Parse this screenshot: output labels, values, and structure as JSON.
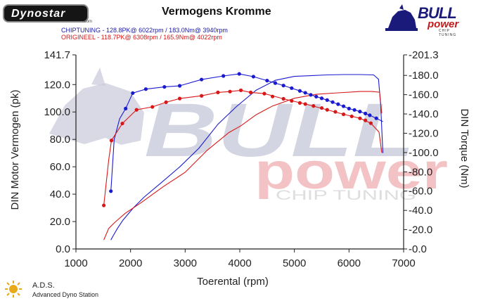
{
  "header": {
    "logo_text": "Dynostar",
    "logo_sub": ".com",
    "brand_main": "BULL",
    "brand_sub": "power",
    "brand_tagline": "CHIP TUNING",
    "watermark_main": "BULL",
    "watermark_sub": "power",
    "watermark_tag": "CHIP TUNING"
  },
  "footer": {
    "ads_abbrev": "A.D.S.",
    "ads_full": "Advanced Dyno Station"
  },
  "colors": {
    "chip": "#1a1ad0",
    "orig": "#d81818"
  },
  "chart_data": {
    "type": "line",
    "title": "Vermogens Kromme",
    "xlabel": "Toerental (rpm)",
    "ylabel": "DIN Motor Vermogen (pk)",
    "y2label": "DIN Torque (Nm)",
    "xlim": [
      1000,
      7000
    ],
    "ylim": [
      0,
      141.7
    ],
    "y2lim": [
      0,
      201.3
    ],
    "x_ticks": [
      "1000",
      "2000",
      "3000",
      "4000",
      "5000",
      "6000",
      "7000"
    ],
    "y_ticks": [
      "0.0",
      "20.0",
      "40.0",
      "60.0",
      "80.0",
      "100.0",
      "120.0",
      "141.7"
    ],
    "y2_ticks": [
      "0.0",
      "20.0",
      "40.0",
      "60.0",
      "80.0",
      "100.0",
      "120.0",
      "140.0",
      "160.0",
      "180.0",
      "201.3"
    ],
    "legend": [
      "CHIPTUNING  - 128.8PK@ 6022rpm / 183.0Nm@ 3940rpm",
      "ORIGINEEL  - 118.7PK@ 6308rpm / 165.9Nm@ 4022rpm"
    ],
    "series": [
      {
        "name": "CHIPTUNING",
        "kind": "torque",
        "axis": "y2",
        "x": [
          1640,
          1680,
          1760,
          1860,
          2050,
          2250,
          2550,
          2900,
          3250,
          3600,
          3940,
          4300,
          4650,
          5000,
          5300,
          5600,
          5900,
          6200,
          6450,
          6540,
          6580,
          6620
        ],
        "y": [
          9.3,
          13.5,
          21.3,
          29.8,
          42.6,
          53.9,
          68.1,
          85.1,
          104.4,
          129.3,
          147.7,
          164.7,
          174.9,
          179.0,
          179.7,
          180.5,
          180.9,
          180.9,
          180.5,
          176.0,
          149.1,
          99.4
        ]
      },
      {
        "name": "CHIPTUNING",
        "kind": "power",
        "axis": "y",
        "x": [
          1640,
          1700,
          1800,
          1910,
          2040,
          2280,
          2620,
          2900,
          3300,
          3700,
          3990,
          4250,
          4500,
          4800,
          5100,
          5300,
          5600,
          6000,
          6200,
          6380,
          6500,
          6620
        ],
        "y": [
          42.2,
          80.0,
          95.0,
          102.5,
          113.8,
          116.7,
          118.3,
          119.1,
          123.7,
          126.3,
          127.8,
          125.8,
          122.9,
          119.3,
          115.4,
          112.5,
          108.7,
          102.5,
          100.3,
          97.6,
          95.4,
          93.0
        ]
      },
      {
        "name": "ORIGINEEL",
        "kind": "torque",
        "axis": "y2",
        "x": [
          1510,
          1600,
          1700,
          1900,
          2200,
          2600,
          3000,
          3400,
          3800,
          4022,
          4300,
          4600,
          5000,
          5400,
          5800,
          6200,
          6420,
          6560,
          6600
        ],
        "y": [
          9.3,
          21.3,
          27.0,
          36.9,
          48.3,
          64.7,
          79.5,
          102.2,
          120.7,
          127.8,
          139.2,
          148.3,
          156.3,
          160.4,
          161.9,
          163.3,
          163.3,
          162.6,
          140.6
        ]
      },
      {
        "name": "ORIGINEEL",
        "kind": "power",
        "axis": "y",
        "x": [
          1510,
          1600,
          1650,
          1850,
          2110,
          2400,
          2650,
          2900,
          3300,
          3600,
          3820,
          4020,
          4200,
          4450,
          4800,
          5200,
          5600,
          5900,
          6200,
          6400,
          6550,
          6600
        ],
        "y": [
          31.8,
          65.0,
          79.2,
          91.6,
          101.6,
          103.7,
          107.1,
          109.8,
          111.8,
          114.3,
          114.9,
          115.8,
          114.3,
          113.4,
          109.6,
          105.8,
          101.6,
          98.3,
          95.4,
          91.8,
          85.4,
          70.3
        ]
      }
    ],
    "marker_series": [
      {
        "name": "CHIPTUNING",
        "x": [
          1640,
          1910,
          2040,
          2280,
          2620,
          2900,
          3300,
          3700,
          3990,
          4250,
          4500,
          4650,
          4800,
          4950,
          5100,
          5200,
          5300,
          5400,
          5500,
          5600,
          5700,
          5800,
          5900,
          6000,
          6100,
          6200,
          6300,
          6380,
          6500
        ],
        "y": [
          42.2,
          102.5,
          113.8,
          116.7,
          118.3,
          119.1,
          123.7,
          126.3,
          127.8,
          125.8,
          122.9,
          121.1,
          119.3,
          117.4,
          115.4,
          114.0,
          112.5,
          111.2,
          110.0,
          108.7,
          107.2,
          105.7,
          104.2,
          102.5,
          101.5,
          100.3,
          98.9,
          97.6,
          95.4
        ]
      },
      {
        "name": "ORIGINEEL",
        "x": [
          1510,
          1650,
          1850,
          2110,
          2400,
          2650,
          2900,
          3300,
          3600,
          3820,
          4020,
          4200,
          4450,
          4600,
          4800,
          4950,
          5100,
          5200,
          5350,
          5500,
          5600,
          5750,
          5900,
          6050,
          6200,
          6300,
          6400
        ],
        "y": [
          31.8,
          79.2,
          91.6,
          101.6,
          103.7,
          107.1,
          109.8,
          111.8,
          114.3,
          114.9,
          115.8,
          114.3,
          113.4,
          111.3,
          109.6,
          108.1,
          106.6,
          105.8,
          104.4,
          102.9,
          101.6,
          100.1,
          98.3,
          96.8,
          95.4,
          93.9,
          91.8
        ]
      }
    ],
    "grid": false
  }
}
